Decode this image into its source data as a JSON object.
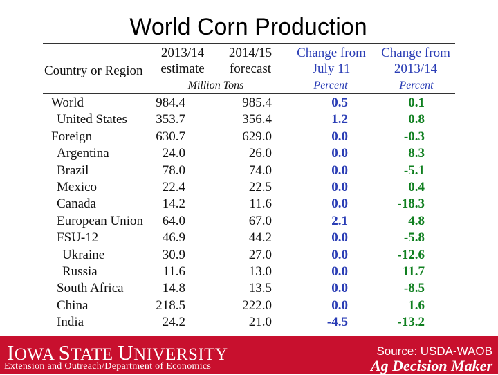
{
  "title": "World Corn Production",
  "table": {
    "headers": {
      "region": "Country or Region",
      "col1": [
        "2013/14",
        "estimate"
      ],
      "col2": [
        "2014/15",
        "forecast"
      ],
      "col3": [
        "Change from",
        "July 11"
      ],
      "col4": [
        "Change from",
        "2013/14"
      ]
    },
    "units": {
      "tons": "Million Tons",
      "pct1": "Percent",
      "pct2": "Percent"
    },
    "rows": [
      {
        "region": "World",
        "indent": 0,
        "est": "984.4",
        "fc": "985.4",
        "chg_july": "0.5",
        "chg_yr": "0.1"
      },
      {
        "region": "United States",
        "indent": 1,
        "est": "353.7",
        "fc": "356.4",
        "chg_july": "1.2",
        "chg_yr": "0.8"
      },
      {
        "region": "Foreign",
        "indent": 0,
        "est": "630.7",
        "fc": "629.0",
        "chg_july": "0.0",
        "chg_yr": "-0.3"
      },
      {
        "region": "Argentina",
        "indent": 1,
        "est": "24.0",
        "fc": "26.0",
        "chg_july": "0.0",
        "chg_yr": "8.3"
      },
      {
        "region": "Brazil",
        "indent": 1,
        "est": "78.0",
        "fc": "74.0",
        "chg_july": "0.0",
        "chg_yr": "-5.1"
      },
      {
        "region": "Mexico",
        "indent": 1,
        "est": "22.4",
        "fc": "22.5",
        "chg_july": "0.0",
        "chg_yr": "0.4"
      },
      {
        "region": "Canada",
        "indent": 1,
        "est": "14.2",
        "fc": "11.6",
        "chg_july": "0.0",
        "chg_yr": "-18.3"
      },
      {
        "region": "European Union",
        "indent": 1,
        "est": "64.0",
        "fc": "67.0",
        "chg_july": "2.1",
        "chg_yr": "4.8"
      },
      {
        "region": "FSU-12",
        "indent": 1,
        "est": "46.9",
        "fc": "44.2",
        "chg_july": "0.0",
        "chg_yr": "-5.8"
      },
      {
        "region": "Ukraine",
        "indent": 2,
        "est": "30.9",
        "fc": "27.0",
        "chg_july": "0.0",
        "chg_yr": "-12.6"
      },
      {
        "region": "Russia",
        "indent": 2,
        "est": "11.6",
        "fc": "13.0",
        "chg_july": "0.0",
        "chg_yr": "11.7"
      },
      {
        "region": "South Africa",
        "indent": 1,
        "est": "14.8",
        "fc": "13.5",
        "chg_july": "0.0",
        "chg_yr": "-8.5"
      },
      {
        "region": "China",
        "indent": 1,
        "est": "218.5",
        "fc": "222.0",
        "chg_july": "0.0",
        "chg_yr": "1.6"
      },
      {
        "region": "India",
        "indent": 1,
        "est": "24.2",
        "fc": "21.0",
        "chg_july": "-4.5",
        "chg_yr": "-13.2"
      }
    ]
  },
  "footer": {
    "university_first": "I",
    "university_rest_1": "OWA ",
    "university_second": "S",
    "university_rest_2": "TATE ",
    "university_third": "U",
    "university_rest_3": "NIVERSITY",
    "extension": "Extension and Outreach/Department of Economics",
    "source": "Source: USDA-WAOB",
    "brand": "Ag Decision Maker"
  },
  "colors": {
    "footer_bg": "#c8102e",
    "change_july": "#2a3db5",
    "change_year": "#0f7f1f"
  }
}
